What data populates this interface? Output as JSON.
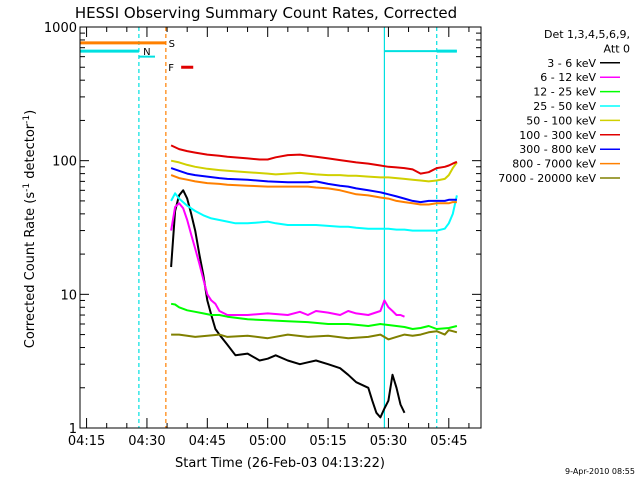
{
  "chart_data": {
    "type": "line",
    "title": "HESSI Observing Summary Count Rates, Corrected",
    "xlabel": "Start Time (26-Feb-03 04:13:22)",
    "ylabel_prefix": "Corrected Count Rate (s",
    "ylabel_sup1": "-1",
    "ylabel_mid": " detector",
    "ylabel_sup2": "-1",
    "ylabel_suffix": ")",
    "timestamp": "9-Apr-2010 08:55",
    "y_scale": "log",
    "ylim": [
      1,
      1000
    ],
    "xlim": [
      "04:13:22",
      "05:53:00"
    ],
    "x_ticks": [
      "04:15",
      "04:30",
      "04:45",
      "05:00",
      "05:15",
      "05:30",
      "05:45"
    ],
    "x_tick_minutes": [
      15,
      30,
      45,
      60,
      75,
      90,
      105
    ],
    "y_ticks": [
      "1",
      "10",
      "100",
      "1000"
    ],
    "y_tick_values": [
      1,
      10,
      100,
      1000
    ],
    "grid": false,
    "legend": {
      "header": [
        "Det 1,3,4,5,6,9,",
        "Att 0"
      ],
      "placement": "right"
    },
    "flag_labels": {
      "S": "S",
      "N": "N",
      "F": "F"
    },
    "flag_colors": {
      "S": "#ff8000",
      "N": "#00e0e0",
      "F": "#e00000"
    },
    "series": [
      {
        "name": "3 - 6 keV",
        "color": "#000000",
        "x": [
          36.0,
          37,
          38,
          39,
          40,
          41,
          42,
          43,
          44,
          45,
          46,
          47,
          48,
          50,
          52,
          55,
          58,
          60,
          62,
          65,
          68,
          70,
          72,
          75,
          78,
          80,
          82,
          85,
          86,
          87,
          88,
          89,
          90,
          91,
          92,
          93,
          94
        ],
        "y": [
          16,
          42,
          55,
          60,
          52,
          40,
          30,
          20,
          14,
          9,
          7,
          5.5,
          5,
          4.2,
          3.5,
          3.6,
          3.2,
          3.3,
          3.5,
          3.2,
          3.0,
          3.1,
          3.2,
          3.0,
          2.8,
          2.5,
          2.2,
          2.0,
          1.6,
          1.3,
          1.2,
          1.4,
          1.6,
          2.5,
          2.0,
          1.5,
          1.3
        ]
      },
      {
        "name": "6 - 12 keV",
        "color": "#ff00ff",
        "x": [
          36.0,
          37,
          38,
          39,
          40,
          41,
          42,
          43,
          44,
          45,
          46,
          47,
          48,
          50,
          55,
          60,
          65,
          68,
          70,
          72,
          75,
          78,
          80,
          82,
          85,
          88,
          89,
          90,
          91,
          92,
          93,
          94
        ],
        "y": [
          30,
          45,
          48,
          44,
          36,
          28,
          22,
          17,
          13,
          10,
          9,
          8.5,
          7.5,
          7,
          7,
          7.2,
          7,
          7.4,
          7,
          7.5,
          7.3,
          7,
          7.5,
          7.2,
          7,
          7.5,
          9,
          8,
          7.5,
          7,
          7,
          6.8
        ]
      },
      {
        "name": "12 - 25 keV",
        "color": "#00ff00",
        "x": [
          36.0,
          37,
          38,
          40,
          42,
          44,
          46,
          48,
          50,
          55,
          60,
          65,
          70,
          75,
          80,
          85,
          88,
          90,
          92,
          94,
          96,
          98,
          100,
          102,
          105,
          107
        ],
        "y": [
          8.5,
          8.4,
          8.0,
          7.6,
          7.4,
          7.2,
          7.0,
          7.0,
          6.8,
          6.5,
          6.4,
          6.3,
          6.2,
          6.0,
          6.0,
          5.8,
          6.0,
          5.9,
          5.8,
          5.7,
          5.5,
          5.6,
          5.8,
          5.5,
          5.6,
          5.8
        ]
      },
      {
        "name": "25 - 50 keV",
        "color": "#00ffff",
        "x": [
          36.0,
          37,
          38,
          40,
          42,
          44,
          46,
          48,
          50,
          52,
          55,
          58,
          60,
          62,
          65,
          68,
          70,
          72,
          75,
          78,
          80,
          82,
          85,
          88,
          90,
          92,
          94,
          96,
          98,
          100,
          102,
          104,
          105,
          106,
          107
        ],
        "y": [
          50,
          57,
          52,
          46,
          42,
          39,
          37,
          36,
          35,
          34,
          34,
          34.5,
          35,
          34,
          33,
          33,
          33,
          33,
          32.5,
          32,
          32,
          31.5,
          31,
          31,
          31,
          30.5,
          30.5,
          30,
          30,
          30,
          30,
          31,
          34,
          40,
          55
        ]
      },
      {
        "name": "50 - 100 keV",
        "color": "#d0d000",
        "x": [
          36.0,
          38,
          40,
          42,
          45,
          48,
          50,
          55,
          60,
          62,
          65,
          68,
          70,
          72,
          75,
          78,
          80,
          82,
          85,
          88,
          90,
          92,
          94,
          96,
          98,
          100,
          102,
          104,
          105,
          106,
          107
        ],
        "y": [
          100,
          97,
          93,
          90,
          87,
          85,
          84,
          82,
          80,
          79,
          80,
          81,
          80,
          79,
          78,
          78,
          77,
          77,
          76,
          75,
          75,
          74,
          73,
          72,
          71,
          70,
          71,
          73,
          78,
          88,
          97
        ]
      },
      {
        "name": "100 - 300 keV",
        "color": "#e00000",
        "x": [
          36.0,
          38,
          40,
          42,
          45,
          48,
          50,
          55,
          58,
          60,
          62,
          65,
          68,
          70,
          72,
          75,
          78,
          80,
          82,
          85,
          88,
          90,
          92,
          94,
          96,
          98,
          100,
          102,
          104,
          105,
          106,
          107
        ],
        "y": [
          130,
          122,
          118,
          115,
          111,
          109,
          107,
          104,
          102,
          102,
          106,
          110,
          111,
          109,
          107,
          104,
          101,
          99,
          97,
          95,
          92,
          90,
          89,
          88,
          86,
          80,
          82,
          88,
          90,
          92,
          95,
          98
        ]
      },
      {
        "name": "300 - 800 keV",
        "color": "#0000ff",
        "x": [
          36.0,
          38,
          40,
          42,
          45,
          48,
          50,
          55,
          60,
          65,
          70,
          72,
          75,
          78,
          80,
          82,
          85,
          88,
          90,
          92,
          94,
          96,
          98,
          100,
          102,
          104,
          105,
          106,
          107
        ],
        "y": [
          88,
          84,
          80,
          78,
          76,
          74,
          73,
          72,
          70,
          69,
          69,
          70,
          67,
          65,
          64,
          62,
          60,
          58,
          56,
          54,
          52,
          50,
          49,
          50,
          50,
          50,
          51,
          51,
          51
        ]
      },
      {
        "name": "800 - 7000 keV",
        "color": "#ff8000",
        "x": [
          36.0,
          38,
          40,
          42,
          45,
          48,
          50,
          55,
          60,
          65,
          70,
          72,
          75,
          78,
          80,
          82,
          85,
          88,
          90,
          92,
          94,
          96,
          98,
          100,
          102,
          104,
          105,
          106,
          107
        ],
        "y": [
          78,
          74,
          72,
          70,
          68,
          67,
          66,
          65,
          64,
          64,
          64,
          63,
          62,
          60,
          58,
          56,
          55,
          53,
          52,
          50,
          49,
          48,
          47,
          47,
          48,
          48,
          48,
          49,
          49
        ]
      },
      {
        "name": "7000 - 20000 keV",
        "color": "#808000",
        "x": [
          36.0,
          38,
          40,
          42,
          45,
          48,
          50,
          55,
          60,
          65,
          70,
          75,
          80,
          85,
          88,
          90,
          92,
          94,
          96,
          98,
          100,
          102,
          104,
          105,
          106,
          107
        ],
        "y": [
          5.0,
          5.0,
          4.9,
          4.8,
          4.9,
          5.0,
          4.8,
          4.9,
          4.7,
          5.0,
          4.8,
          4.9,
          4.7,
          4.8,
          5.0,
          4.6,
          4.8,
          5.0,
          4.9,
          5.0,
          5.2,
          5.3,
          5.0,
          5.4,
          5.3,
          5.2
        ]
      }
    ],
    "attenuator_levels": [
      {
        "x": [
          13.37,
          28.0
        ],
        "y": 660
      },
      {
        "x": [
          28.0,
          32.0
        ],
        "y": 600
      },
      {
        "x": [
          89.0,
          102.0
        ],
        "y": 660
      },
      {
        "x": [
          102.0,
          107.0
        ],
        "y": 660
      }
    ],
    "flag_bars": [
      {
        "flag": "S",
        "x": [
          13.37,
          34.7
        ],
        "y": 760
      },
      {
        "flag": "N",
        "x": [
          13.37,
          28.0
        ],
        "y": 660
      },
      {
        "flag": "N",
        "x": [
          102.0,
          107.0
        ],
        "y": 660
      },
      {
        "flag": "F",
        "x": [
          38.5,
          41.5
        ],
        "y": 500
      }
    ],
    "vertical_markers": [
      {
        "x": 28.0,
        "color": "#00e0e0",
        "style": "dashed"
      },
      {
        "x": 34.7,
        "color": "#ff8000",
        "style": "dashed"
      },
      {
        "x": 89.0,
        "color": "#00e0e0",
        "style": "solid"
      },
      {
        "x": 102.0,
        "color": "#00e0e0",
        "style": "dashed"
      }
    ]
  }
}
